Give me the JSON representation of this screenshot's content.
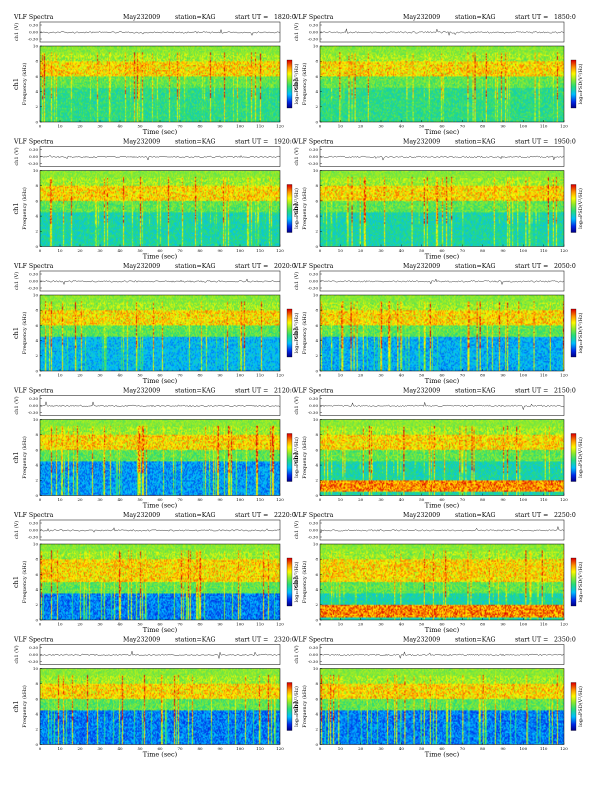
{
  "header_label": "VLF Spectra",
  "date": "May232009",
  "station_label": "station=KAG",
  "start_label": "start UT =",
  "time_axis_label": "Time (sec)",
  "freq_axis_label": "Frequency (kHz)",
  "channel_label": "ch1",
  "amp_axis_label": "ch1 (V)",
  "colorbar_label": "log₁₀PSD(V²/Hz)",
  "chart_data": [
    {
      "type": "heatmap",
      "start_ut": "1820:0",
      "xlim": [
        0,
        120
      ],
      "ylim": [
        0,
        10
      ],
      "x_ticks": [
        0,
        10,
        20,
        30,
        40,
        50,
        60,
        70,
        80,
        90,
        100,
        110,
        120
      ],
      "y_ticks": [
        0,
        2,
        4,
        6,
        8,
        10
      ],
      "amp_ticks": [
        "0.30",
        "0.00",
        "-0.30"
      ],
      "intense_band_khz": [
        6,
        8
      ],
      "low_band_khz": null,
      "quiet_level": 0.35
    },
    {
      "type": "heatmap",
      "start_ut": "1850:0",
      "xlim": [
        0,
        120
      ],
      "ylim": [
        0,
        10
      ],
      "x_ticks": [
        0,
        10,
        20,
        30,
        40,
        50,
        60,
        70,
        80,
        90,
        100,
        110,
        120
      ],
      "y_ticks": [
        0,
        2,
        4,
        6,
        8,
        10
      ],
      "amp_ticks": [
        "0.30",
        "0.00",
        "-0.30"
      ],
      "intense_band_khz": [
        6,
        8
      ],
      "low_band_khz": null,
      "quiet_level": 0.35
    },
    {
      "type": "heatmap",
      "start_ut": "1920:0",
      "xlim": [
        0,
        120
      ],
      "ylim": [
        0,
        10
      ],
      "x_ticks": [
        0,
        10,
        20,
        30,
        40,
        50,
        60,
        70,
        80,
        90,
        100,
        110,
        120
      ],
      "y_ticks": [
        0,
        2,
        4,
        6,
        8,
        10
      ],
      "amp_ticks": [
        "0.30",
        "0.00",
        "-0.30"
      ],
      "intense_band_khz": [
        6,
        8
      ],
      "low_band_khz": null,
      "quiet_level": 0.3
    },
    {
      "type": "heatmap",
      "start_ut": "1950:0",
      "xlim": [
        0,
        120
      ],
      "ylim": [
        0,
        10
      ],
      "x_ticks": [
        0,
        10,
        20,
        30,
        40,
        50,
        60,
        70,
        80,
        90,
        100,
        110,
        120
      ],
      "y_ticks": [
        0,
        2,
        4,
        6,
        8,
        10
      ],
      "amp_ticks": [
        "0.30",
        "0.00",
        "-0.30"
      ],
      "intense_band_khz": [
        6,
        8
      ],
      "low_band_khz": null,
      "quiet_level": 0.3
    },
    {
      "type": "heatmap",
      "start_ut": "2020:0",
      "xlim": [
        0,
        120
      ],
      "ylim": [
        0,
        10
      ],
      "x_ticks": [
        0,
        10,
        20,
        30,
        40,
        50,
        60,
        70,
        80,
        90,
        100,
        110,
        120
      ],
      "y_ticks": [
        0,
        2,
        4,
        6,
        8,
        10
      ],
      "amp_ticks": [
        "0.30",
        "0.00",
        "-0.30"
      ],
      "intense_band_khz": [
        6,
        8
      ],
      "low_band_khz": null,
      "quiet_level": 0.2
    },
    {
      "type": "heatmap",
      "start_ut": "2050:0",
      "xlim": [
        0,
        120
      ],
      "ylim": [
        0,
        10
      ],
      "x_ticks": [
        0,
        10,
        20,
        30,
        40,
        50,
        60,
        70,
        80,
        90,
        100,
        110,
        120
      ],
      "y_ticks": [
        0,
        2,
        4,
        6,
        8,
        10
      ],
      "amp_ticks": [
        "0.30",
        "0.00",
        "-0.30"
      ],
      "intense_band_khz": [
        6,
        8
      ],
      "low_band_khz": null,
      "quiet_level": 0.18
    },
    {
      "type": "heatmap",
      "start_ut": "2120:0",
      "xlim": [
        0,
        120
      ],
      "ylim": [
        0,
        10
      ],
      "x_ticks": [
        0,
        10,
        20,
        30,
        40,
        50,
        60,
        70,
        80,
        90,
        100,
        110,
        120
      ],
      "y_ticks": [
        0,
        2,
        4,
        6,
        8,
        10
      ],
      "amp_ticks": [
        "0.30",
        "0.00",
        "-0.30"
      ],
      "intense_band_khz": [
        6,
        8
      ],
      "low_band_khz": null,
      "quiet_level": 0.15
    },
    {
      "type": "heatmap",
      "start_ut": "2150:0",
      "xlim": [
        0,
        120
      ],
      "ylim": [
        0,
        10
      ],
      "x_ticks": [
        0,
        10,
        20,
        30,
        40,
        50,
        60,
        70,
        80,
        90,
        100,
        110,
        120
      ],
      "y_ticks": [
        0,
        2,
        4,
        6,
        8,
        10
      ],
      "amp_ticks": [
        "0.30",
        "0.00",
        "-0.30"
      ],
      "intense_band_khz": [
        6,
        8
      ],
      "low_band_khz": [
        0.5,
        2
      ],
      "quiet_level": 0.3
    },
    {
      "type": "heatmap",
      "start_ut": "2220:0",
      "xlim": [
        0,
        120
      ],
      "ylim": [
        0,
        10
      ],
      "x_ticks": [
        0,
        10,
        20,
        30,
        40,
        50,
        60,
        70,
        80,
        90,
        100,
        110,
        120
      ],
      "y_ticks": [
        0,
        2,
        4,
        6,
        8,
        10
      ],
      "amp_ticks": [
        "0.30",
        "0.00",
        "-0.30"
      ],
      "intense_band_khz": [
        5,
        8
      ],
      "low_band_khz": null,
      "quiet_level": 0.12
    },
    {
      "type": "heatmap",
      "start_ut": "2250:0",
      "xlim": [
        0,
        120
      ],
      "ylim": [
        0,
        10
      ],
      "x_ticks": [
        0,
        10,
        20,
        30,
        40,
        50,
        60,
        70,
        80,
        90,
        100,
        110,
        120
      ],
      "y_ticks": [
        0,
        2,
        4,
        6,
        8,
        10
      ],
      "amp_ticks": [
        "0.30",
        "0.00",
        "-0.30"
      ],
      "intense_band_khz": [
        5,
        8
      ],
      "low_band_khz": [
        0.3,
        2
      ],
      "quiet_level": 0.3
    },
    {
      "type": "heatmap",
      "start_ut": "2320:0",
      "xlim": [
        0,
        120
      ],
      "ylim": [
        0,
        10
      ],
      "x_ticks": [
        0,
        10,
        20,
        30,
        40,
        50,
        60,
        70,
        80,
        90,
        100,
        110,
        120
      ],
      "y_ticks": [
        0,
        2,
        4,
        6,
        8,
        10
      ],
      "amp_ticks": [
        "0.30",
        "0.00",
        "-0.30"
      ],
      "intense_band_khz": [
        6,
        8
      ],
      "low_band_khz": null,
      "quiet_level": 0.12
    },
    {
      "type": "heatmap",
      "start_ut": "2350:0",
      "xlim": [
        0,
        120
      ],
      "ylim": [
        0,
        10
      ],
      "x_ticks": [
        0,
        10,
        20,
        30,
        40,
        50,
        60,
        70,
        80,
        90,
        100,
        110,
        120
      ],
      "y_ticks": [
        0,
        2,
        4,
        6,
        8,
        10
      ],
      "amp_ticks": [
        "0.30",
        "0.00",
        "-0.30"
      ],
      "intense_band_khz": [
        6,
        8
      ],
      "low_band_khz": null,
      "quiet_level": 0.12
    }
  ]
}
